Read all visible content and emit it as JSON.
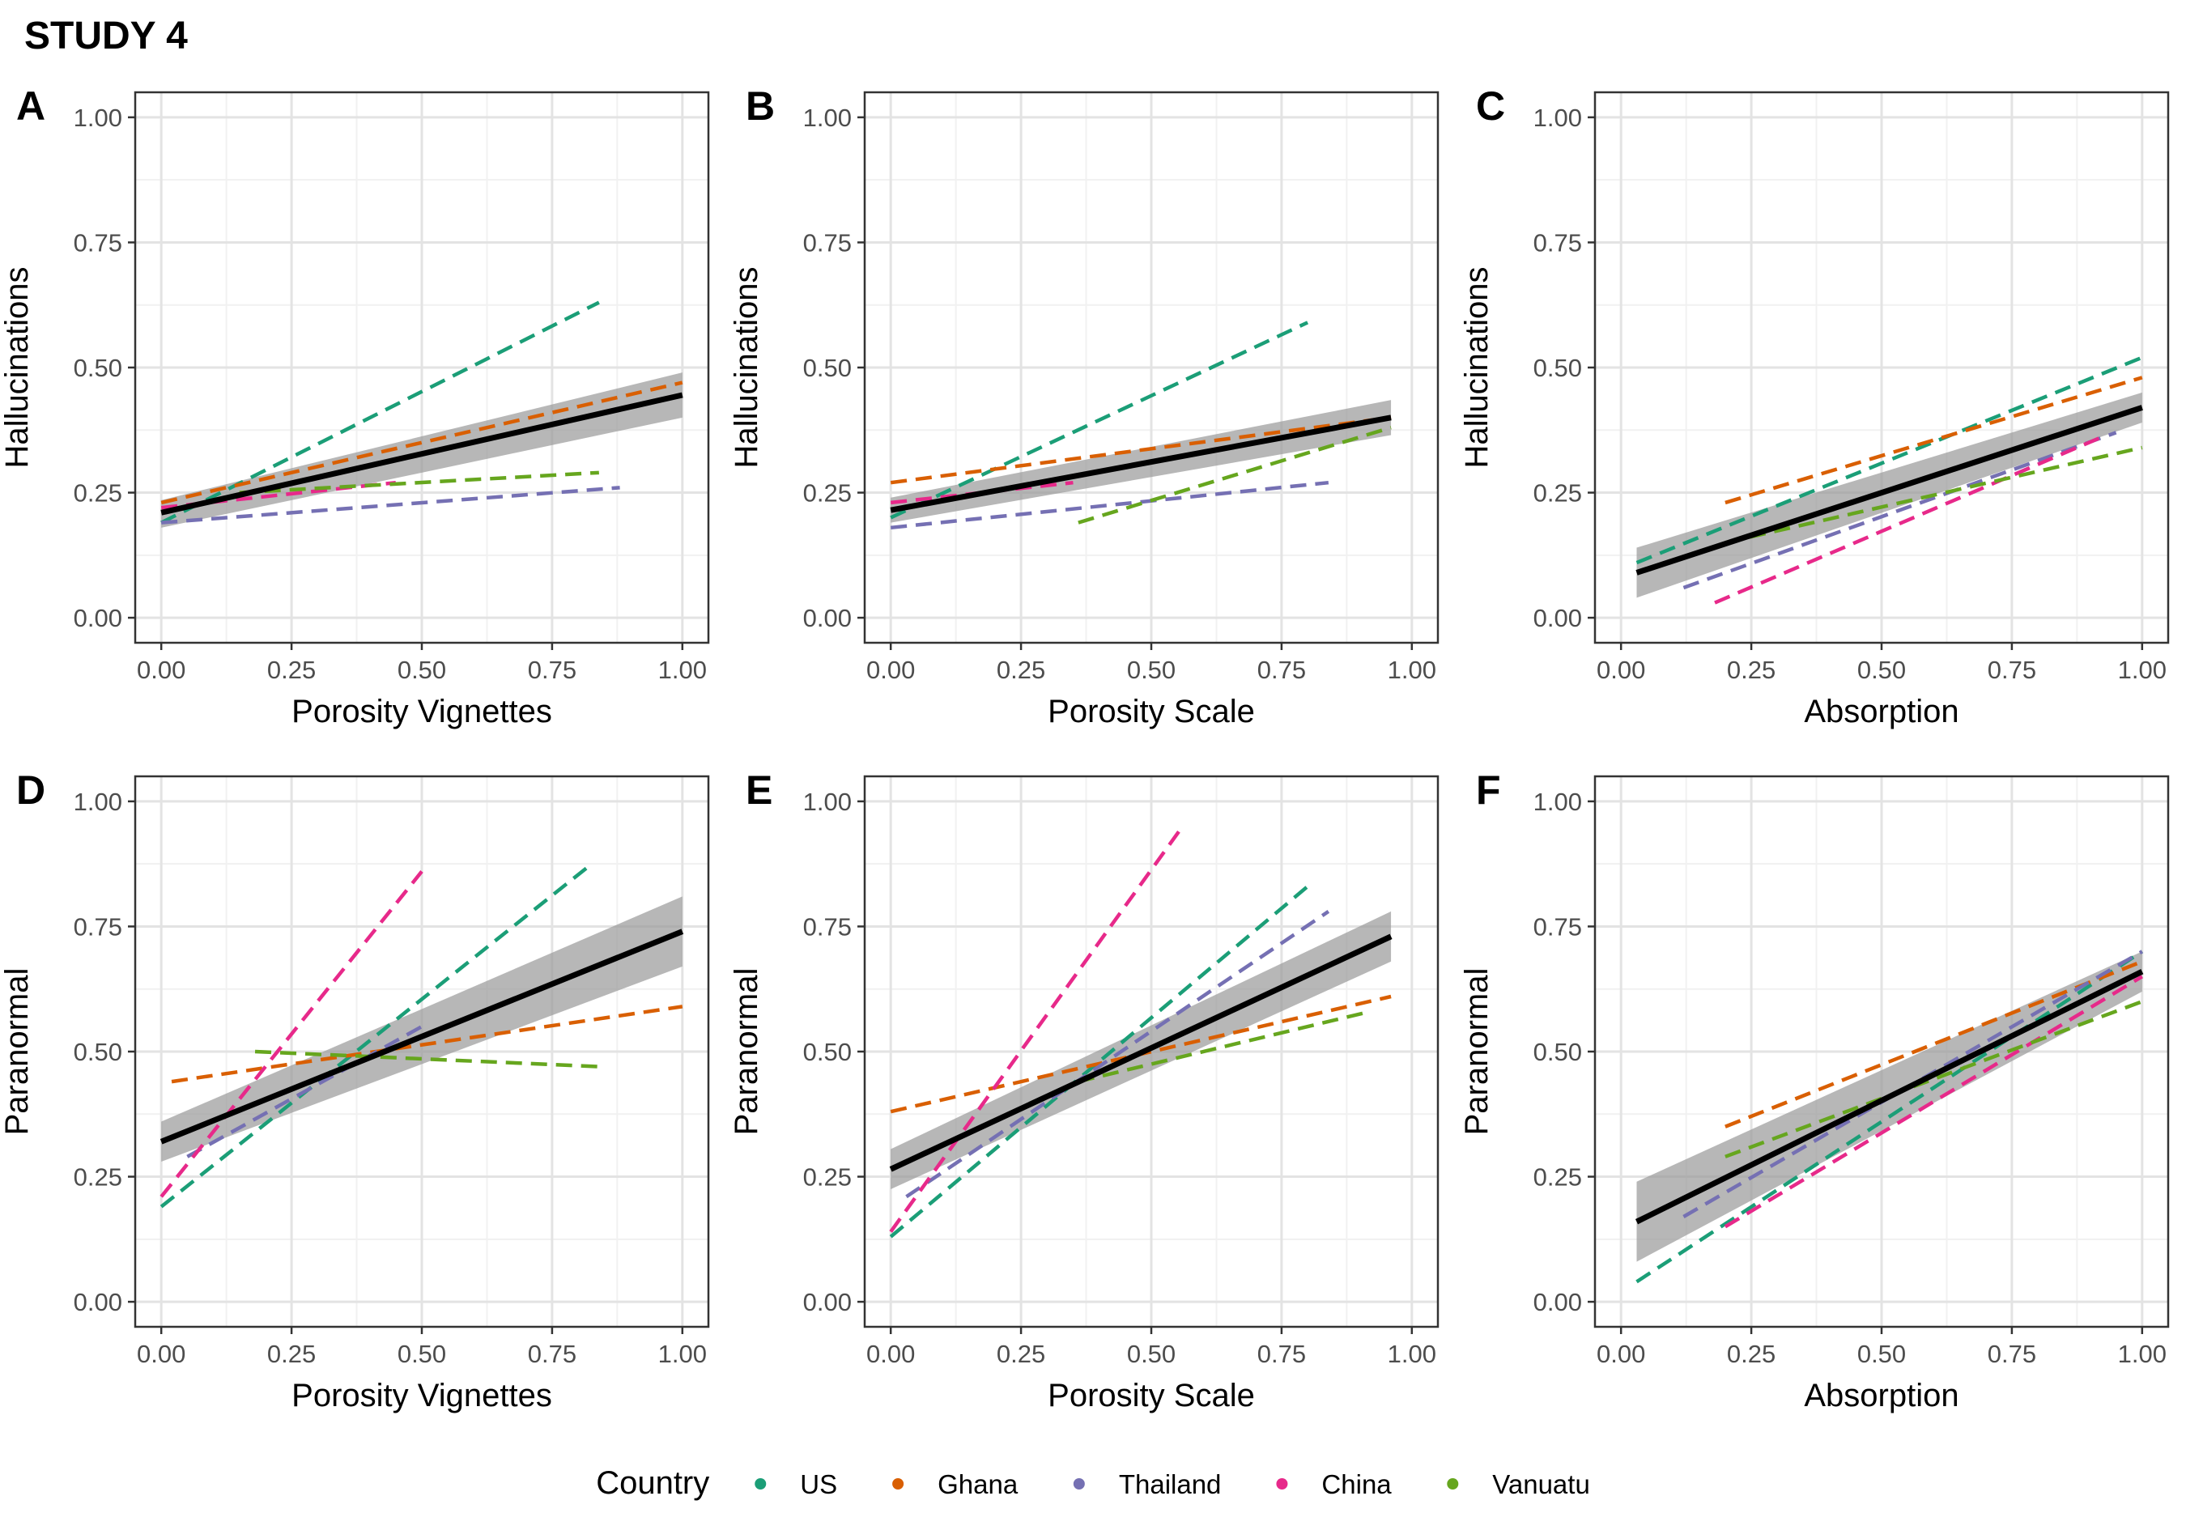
{
  "title": "STUDY 4",
  "colors": {
    "US": "#1b9e77",
    "Ghana": "#d95f02",
    "Thailand": "#7570b3",
    "China": "#e7298a",
    "Vanuatu": "#66a61e",
    "overall": "#000000",
    "ribbon": "#999999"
  },
  "legend": {
    "title": "Country",
    "items": [
      "US",
      "Ghana",
      "Thailand",
      "China",
      "Vanuatu"
    ]
  },
  "chart_data": [
    {
      "panel": "A",
      "type": "scatter",
      "xlabel": "Porosity Vignettes",
      "ylabel": "Hallucinations",
      "xlim": [
        0,
        1
      ],
      "ylim": [
        0,
        1
      ],
      "xticks": [
        "0.00",
        "0.25",
        "0.50",
        "0.75",
        "1.00"
      ],
      "yticks": [
        "0.00",
        "0.25",
        "0.50",
        "0.75",
        "1.00"
      ],
      "grid": true,
      "overall_fit": {
        "x": [
          0,
          1
        ],
        "y": [
          0.21,
          0.445
        ],
        "ci_lower": [
          0.18,
          0.4
        ],
        "ci_upper": [
          0.235,
          0.49
        ]
      },
      "country_fits": [
        {
          "name": "US",
          "x": [
            0.0,
            0.84
          ],
          "y": [
            0.19,
            0.63
          ]
        },
        {
          "name": "Ghana",
          "x": [
            0.0,
            1.0
          ],
          "y": [
            0.23,
            0.47
          ]
        },
        {
          "name": "Thailand",
          "x": [
            0.0,
            0.88
          ],
          "y": [
            0.19,
            0.26
          ]
        },
        {
          "name": "China",
          "x": [
            0.0,
            0.45
          ],
          "y": [
            0.22,
            0.27
          ]
        },
        {
          "name": "Vanuatu",
          "x": [
            0.15,
            0.84
          ],
          "y": [
            0.25,
            0.29
          ]
        }
      ]
    },
    {
      "panel": "B",
      "type": "scatter",
      "xlabel": "Porosity Scale",
      "ylabel": "Hallucinations",
      "xlim": [
        0,
        1
      ],
      "ylim": [
        0,
        1
      ],
      "xticks": [
        "0.00",
        "0.25",
        "0.50",
        "0.75",
        "1.00"
      ],
      "yticks": [
        "0.00",
        "0.25",
        "0.50",
        "0.75",
        "1.00"
      ],
      "grid": true,
      "overall_fit": {
        "x": [
          0,
          0.96
        ],
        "y": [
          0.215,
          0.4
        ],
        "ci_lower": [
          0.19,
          0.365
        ],
        "ci_upper": [
          0.24,
          0.435
        ]
      },
      "country_fits": [
        {
          "name": "US",
          "x": [
            0.0,
            0.8
          ],
          "y": [
            0.2,
            0.59
          ]
        },
        {
          "name": "Ghana",
          "x": [
            0.0,
            0.96
          ],
          "y": [
            0.27,
            0.4
          ]
        },
        {
          "name": "Thailand",
          "x": [
            0.0,
            0.84
          ],
          "y": [
            0.18,
            0.27
          ]
        },
        {
          "name": "China",
          "x": [
            0.0,
            0.35
          ],
          "y": [
            0.23,
            0.27
          ]
        },
        {
          "name": "Vanuatu",
          "x": [
            0.36,
            0.96
          ],
          "y": [
            0.19,
            0.38
          ]
        }
      ]
    },
    {
      "panel": "C",
      "type": "scatter",
      "xlabel": "Absorption",
      "ylabel": "Hallucinations",
      "xlim": [
        0,
        1
      ],
      "ylim": [
        0,
        1
      ],
      "xticks": [
        "0.00",
        "0.25",
        "0.50",
        "0.75",
        "1.00"
      ],
      "yticks": [
        "0.00",
        "0.25",
        "0.50",
        "0.75",
        "1.00"
      ],
      "grid": true,
      "overall_fit": {
        "x": [
          0.03,
          1
        ],
        "y": [
          0.09,
          0.42
        ],
        "ci_lower": [
          0.04,
          0.39
        ],
        "ci_upper": [
          0.14,
          0.45
        ]
      },
      "country_fits": [
        {
          "name": "US",
          "x": [
            0.03,
            1.0
          ],
          "y": [
            0.11,
            0.52
          ]
        },
        {
          "name": "Ghana",
          "x": [
            0.2,
            1.0
          ],
          "y": [
            0.23,
            0.48
          ]
        },
        {
          "name": "Thailand",
          "x": [
            0.12,
            0.95
          ],
          "y": [
            0.06,
            0.37
          ]
        },
        {
          "name": "China",
          "x": [
            0.18,
            0.92
          ],
          "y": [
            0.03,
            0.36
          ]
        },
        {
          "name": "Vanuatu",
          "x": [
            0.2,
            1.0
          ],
          "y": [
            0.15,
            0.34
          ]
        }
      ]
    },
    {
      "panel": "D",
      "type": "scatter",
      "xlabel": "Porosity Vignettes",
      "ylabel": "Paranormal",
      "xlim": [
        0,
        1
      ],
      "ylim": [
        0,
        1
      ],
      "xticks": [
        "0.00",
        "0.25",
        "0.50",
        "0.75",
        "1.00"
      ],
      "yticks": [
        "0.00",
        "0.25",
        "0.50",
        "0.75",
        "1.00"
      ],
      "grid": true,
      "overall_fit": {
        "x": [
          0,
          1
        ],
        "y": [
          0.32,
          0.74
        ],
        "ci_lower": [
          0.28,
          0.67
        ],
        "ci_upper": [
          0.36,
          0.81
        ]
      },
      "country_fits": [
        {
          "name": "US",
          "x": [
            0.0,
            0.82
          ],
          "y": [
            0.19,
            0.87
          ]
        },
        {
          "name": "Ghana",
          "x": [
            0.02,
            1.0
          ],
          "y": [
            0.44,
            0.59
          ]
        },
        {
          "name": "Thailand",
          "x": [
            0.05,
            0.5
          ],
          "y": [
            0.29,
            0.55
          ]
        },
        {
          "name": "China",
          "x": [
            0.0,
            0.5
          ],
          "y": [
            0.21,
            0.86
          ]
        },
        {
          "name": "Vanuatu",
          "x": [
            0.18,
            0.84
          ],
          "y": [
            0.5,
            0.47
          ]
        }
      ]
    },
    {
      "panel": "E",
      "type": "scatter",
      "xlabel": "Porosity Scale",
      "ylabel": "Paranormal",
      "xlim": [
        0,
        1
      ],
      "ylim": [
        0,
        1
      ],
      "xticks": [
        "0.00",
        "0.25",
        "0.50",
        "0.75",
        "1.00"
      ],
      "yticks": [
        "0.00",
        "0.25",
        "0.50",
        "0.75",
        "1.00"
      ],
      "grid": true,
      "overall_fit": {
        "x": [
          0,
          0.96
        ],
        "y": [
          0.265,
          0.73
        ],
        "ci_lower": [
          0.225,
          0.68
        ],
        "ci_upper": [
          0.305,
          0.78
        ]
      },
      "country_fits": [
        {
          "name": "US",
          "x": [
            0.0,
            0.8
          ],
          "y": [
            0.13,
            0.83
          ]
        },
        {
          "name": "Ghana",
          "x": [
            0.0,
            0.96
          ],
          "y": [
            0.38,
            0.61
          ]
        },
        {
          "name": "Thailand",
          "x": [
            0.03,
            0.84
          ],
          "y": [
            0.21,
            0.78
          ]
        },
        {
          "name": "China",
          "x": [
            0.0,
            0.56
          ],
          "y": [
            0.14,
            0.95
          ]
        },
        {
          "name": "Vanuatu",
          "x": [
            0.36,
            0.92
          ],
          "y": [
            0.44,
            0.58
          ]
        }
      ]
    },
    {
      "panel": "F",
      "type": "scatter",
      "xlabel": "Absorption",
      "ylabel": "Paranormal",
      "xlim": [
        0,
        1
      ],
      "ylim": [
        0,
        1
      ],
      "xticks": [
        "0.00",
        "0.25",
        "0.50",
        "0.75",
        "1.00"
      ],
      "yticks": [
        "0.00",
        "0.25",
        "0.50",
        "0.75",
        "1.00"
      ],
      "grid": true,
      "overall_fit": {
        "x": [
          0.03,
          1
        ],
        "y": [
          0.16,
          0.66
        ],
        "ci_lower": [
          0.08,
          0.62
        ],
        "ci_upper": [
          0.24,
          0.7
        ]
      },
      "country_fits": [
        {
          "name": "US",
          "x": [
            0.03,
            1.0
          ],
          "y": [
            0.04,
            0.7
          ]
        },
        {
          "name": "Ghana",
          "x": [
            0.2,
            1.0
          ],
          "y": [
            0.35,
            0.68
          ]
        },
        {
          "name": "Thailand",
          "x": [
            0.12,
            1.0
          ],
          "y": [
            0.17,
            0.7
          ]
        },
        {
          "name": "China",
          "x": [
            0.2,
            1.0
          ],
          "y": [
            0.15,
            0.65
          ]
        },
        {
          "name": "Vanuatu",
          "x": [
            0.2,
            1.0
          ],
          "y": [
            0.29,
            0.6
          ]
        }
      ]
    }
  ]
}
